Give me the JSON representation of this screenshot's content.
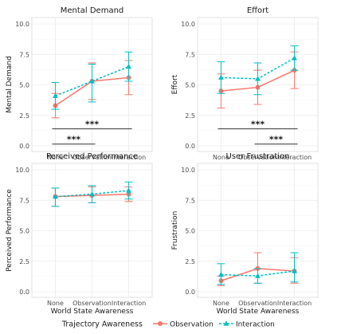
{
  "colors": {
    "observation": "#F8766D",
    "interaction": "#00BFC4",
    "grid": "#ebebeb",
    "panel_border": "#d9d9d9",
    "significance": "#333333"
  },
  "legend": {
    "title": "Trajectory Awareness",
    "items": [
      "Observation",
      "Interaction"
    ]
  },
  "chart_data": [
    {
      "type": "line",
      "title": "Mental Demand",
      "xlabel": "",
      "ylabel": "Mental Demand",
      "categories": [
        "None",
        "Observation",
        "Interaction"
      ],
      "ylim": [
        0,
        10
      ],
      "yticks": [
        "0.0",
        "2.5",
        "5.0",
        "7.5",
        "10.0"
      ],
      "grid": true,
      "series": [
        {
          "name": "Observation",
          "values": [
            3.3,
            5.3,
            5.6
          ],
          "lower": [
            2.3,
            3.8,
            4.2
          ],
          "upper": [
            4.3,
            6.8,
            7.0
          ]
        },
        {
          "name": "Interaction",
          "values": [
            4.1,
            5.3,
            6.5
          ],
          "lower": [
            3.0,
            3.6,
            5.3
          ],
          "upper": [
            5.2,
            6.7,
            7.7
          ]
        }
      ],
      "significance": [
        {
          "from": 0,
          "to": 2,
          "y": 1.4,
          "label": "***"
        },
        {
          "from": 0,
          "to": 1,
          "y": 0.15,
          "label": "***"
        }
      ]
    },
    {
      "type": "line",
      "title": "Effort",
      "xlabel": "",
      "ylabel": "Effort",
      "categories": [
        "None",
        "Observation",
        "Interaction"
      ],
      "ylim": [
        0,
        10
      ],
      "yticks": [
        "0.0",
        "2.5",
        "5.0",
        "7.5",
        "10.0"
      ],
      "grid": true,
      "series": [
        {
          "name": "Observation",
          "values": [
            4.5,
            4.8,
            6.2
          ],
          "lower": [
            3.1,
            3.4,
            4.7
          ],
          "upper": [
            5.9,
            6.2,
            7.7
          ]
        },
        {
          "name": "Interaction",
          "values": [
            5.6,
            5.5,
            7.2
          ],
          "lower": [
            4.3,
            4.2,
            6.2
          ],
          "upper": [
            6.9,
            6.8,
            8.2
          ]
        }
      ],
      "significance": [
        {
          "from": 0,
          "to": 2,
          "y": 1.4,
          "label": "***"
        },
        {
          "from": 1,
          "to": 2,
          "y": 0.15,
          "label": "***"
        }
      ]
    },
    {
      "type": "line",
      "title": "Perceived Performance",
      "xlabel": "World State Awareness",
      "ylabel": "Perceived Performance",
      "categories": [
        "None",
        "Observation",
        "Interaction"
      ],
      "ylim": [
        0,
        10
      ],
      "yticks": [
        "0.0",
        "2.5",
        "5.0",
        "7.5",
        "10.0"
      ],
      "grid": true,
      "series": [
        {
          "name": "Observation",
          "values": [
            7.8,
            7.9,
            8.0
          ],
          "lower": [
            7.0,
            7.3,
            7.4
          ],
          "upper": [
            8.5,
            8.6,
            8.6
          ]
        },
        {
          "name": "Interaction",
          "values": [
            7.8,
            8.0,
            8.3
          ],
          "lower": [
            7.0,
            7.3,
            7.6
          ],
          "upper": [
            8.5,
            8.7,
            9.0
          ]
        }
      ],
      "significance": []
    },
    {
      "type": "line",
      "title": "User Frustration",
      "xlabel": "World State Awareness",
      "ylabel": "Frustration",
      "categories": [
        "None",
        "Observation",
        "Interaction"
      ],
      "ylim": [
        0,
        10
      ],
      "yticks": [
        "0.0",
        "2.5",
        "5.0",
        "7.5",
        "10.0"
      ],
      "grid": true,
      "series": [
        {
          "name": "Observation",
          "values": [
            0.9,
            1.9,
            1.7
          ],
          "lower": [
            0.5,
            0.7,
            0.7
          ],
          "upper": [
            1.3,
            3.2,
            2.8
          ]
        },
        {
          "name": "Interaction",
          "values": [
            1.4,
            1.3,
            1.7
          ],
          "lower": [
            0.6,
            0.7,
            0.8
          ],
          "upper": [
            2.3,
            1.9,
            3.2
          ]
        }
      ],
      "significance": []
    }
  ]
}
